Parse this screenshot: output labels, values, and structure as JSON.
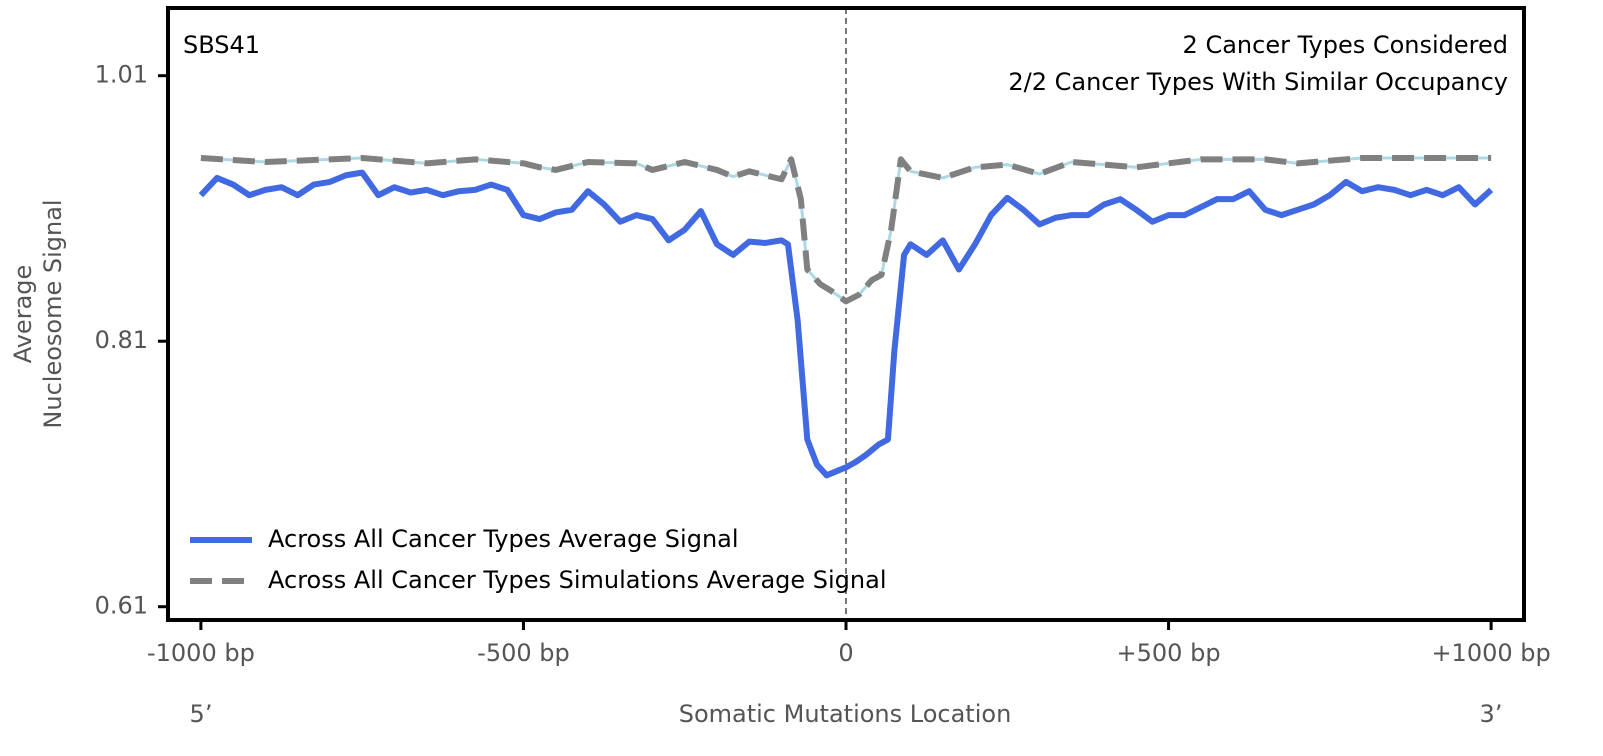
{
  "chart_data": {
    "type": "line",
    "title": "SBS41",
    "annotations": [
      "2 Cancer Types Considered",
      "2/2 Cancer Types With Similar Occupancy"
    ],
    "ylabel": [
      "Average",
      "Nucleosome Signal"
    ],
    "xlabel": "Somatic Mutations Location",
    "x_end_labels": [
      "5’",
      "3’"
    ],
    "xlim": [
      -1051,
      1051
    ],
    "ylim": [
      0.6,
      1.061
    ],
    "xticks": [
      {
        "value": -1000,
        "label": "-1000 bp"
      },
      {
        "value": -500,
        "label": "-500 bp"
      },
      0,
      {
        "value": 500,
        "label": "+500 bp"
      },
      {
        "value": 1000,
        "label": "+1000 bp"
      }
    ],
    "yticks": [
      0.61,
      0.81,
      1.01
    ],
    "legend": "lower left",
    "series": [
      {
        "name": "Across All Cancer Types Average Signal",
        "color": "#4169e1",
        "style": "solid",
        "x": [
          -1000,
          -975,
          -950,
          -925,
          -900,
          -875,
          -850,
          -825,
          -800,
          -775,
          -750,
          -725,
          -700,
          -675,
          -650,
          -625,
          -600,
          -575,
          -550,
          -525,
          -500,
          -475,
          -450,
          -425,
          -400,
          -375,
          -350,
          -325,
          -300,
          -275,
          -250,
          -225,
          -200,
          -175,
          -150,
          -125,
          -100,
          -90,
          -75,
          -60,
          -45,
          -30,
          -15,
          0,
          15,
          30,
          50,
          65,
          75,
          90,
          100,
          125,
          150,
          175,
          200,
          225,
          250,
          275,
          300,
          325,
          350,
          375,
          400,
          425,
          450,
          475,
          500,
          525,
          550,
          575,
          600,
          625,
          650,
          675,
          700,
          725,
          750,
          775,
          800,
          825,
          850,
          875,
          900,
          925,
          950,
          975,
          1000
        ],
        "values": [
          0.92,
          0.933,
          0.928,
          0.92,
          0.924,
          0.926,
          0.92,
          0.928,
          0.93,
          0.935,
          0.937,
          0.92,
          0.926,
          0.922,
          0.924,
          0.92,
          0.923,
          0.924,
          0.928,
          0.924,
          0.905,
          0.902,
          0.907,
          0.909,
          0.923,
          0.913,
          0.9,
          0.905,
          0.902,
          0.886,
          0.894,
          0.908,
          0.883,
          0.875,
          0.885,
          0.884,
          0.886,
          0.883,
          0.826,
          0.736,
          0.717,
          0.709,
          0.712,
          0.715,
          0.719,
          0.724,
          0.732,
          0.736,
          0.803,
          0.875,
          0.883,
          0.875,
          0.886,
          0.864,
          0.883,
          0.905,
          0.918,
          0.909,
          0.898,
          0.903,
          0.905,
          0.905,
          0.913,
          0.917,
          0.909,
          0.9,
          0.905,
          0.905,
          0.911,
          0.917,
          0.917,
          0.923,
          0.909,
          0.905,
          0.909,
          0.913,
          0.92,
          0.93,
          0.923,
          0.926,
          0.924,
          0.92,
          0.924,
          0.92,
          0.926,
          0.913,
          0.924
        ]
      },
      {
        "name": "Across All Cancer Types Simulations Average Signal",
        "color": "#808080",
        "style": "dashed",
        "highlight": "#add8e6",
        "x": [
          -1000,
          -900,
          -800,
          -750,
          -650,
          -575,
          -500,
          -475,
          -450,
          -400,
          -325,
          -300,
          -250,
          -200,
          -175,
          -150,
          -100,
          -85,
          -70,
          -60,
          -40,
          -20,
          0,
          20,
          40,
          55,
          70,
          85,
          100,
          150,
          200,
          250,
          300,
          350,
          450,
          550,
          650,
          700,
          800,
          1000
        ],
        "values": [
          0.948,
          0.945,
          0.947,
          0.948,
          0.944,
          0.947,
          0.944,
          0.941,
          0.939,
          0.945,
          0.944,
          0.939,
          0.945,
          0.939,
          0.934,
          0.938,
          0.932,
          0.947,
          0.917,
          0.864,
          0.853,
          0.847,
          0.84,
          0.845,
          0.856,
          0.86,
          0.894,
          0.947,
          0.938,
          0.933,
          0.941,
          0.943,
          0.936,
          0.945,
          0.941,
          0.947,
          0.947,
          0.944,
          0.948,
          0.948
        ]
      }
    ]
  }
}
